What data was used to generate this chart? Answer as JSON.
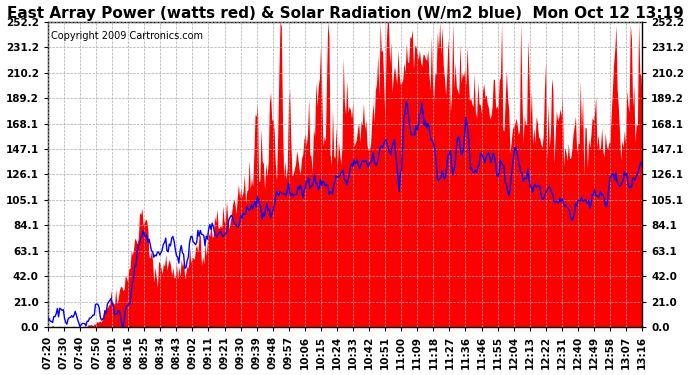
{
  "title": "East Array Power (watts red) & Solar Radiation (W/m2 blue)  Mon Oct 12 13:19",
  "copyright": "Copyright 2009 Cartronics.com",
  "bg_color": "#ffffff",
  "plot_bg_color": "#ffffff",
  "grid_color": "#aaaaaa",
  "fill_color": "#ff0000",
  "line_color": "#0000ff",
  "yticks": [
    0.0,
    21.0,
    42.0,
    63.1,
    84.1,
    105.1,
    126.1,
    147.1,
    168.1,
    189.2,
    210.2,
    231.2,
    252.2
  ],
  "ylim": [
    0.0,
    252.2
  ],
  "xtick_labels": [
    "07:20",
    "07:30",
    "07:40",
    "07:50",
    "08:01",
    "08:16",
    "08:25",
    "08:34",
    "08:43",
    "09:02",
    "09:11",
    "09:21",
    "09:30",
    "09:39",
    "09:48",
    "09:57",
    "10:06",
    "10:15",
    "10:24",
    "10:33",
    "10:42",
    "10:51",
    "11:00",
    "11:09",
    "11:18",
    "11:27",
    "11:36",
    "11:46",
    "11:55",
    "12:04",
    "12:13",
    "12:22",
    "12:31",
    "12:40",
    "12:49",
    "12:58",
    "13:07",
    "13:16"
  ],
  "title_fontsize": 11,
  "tick_fontsize": 7.5,
  "copyright_fontsize": 7
}
